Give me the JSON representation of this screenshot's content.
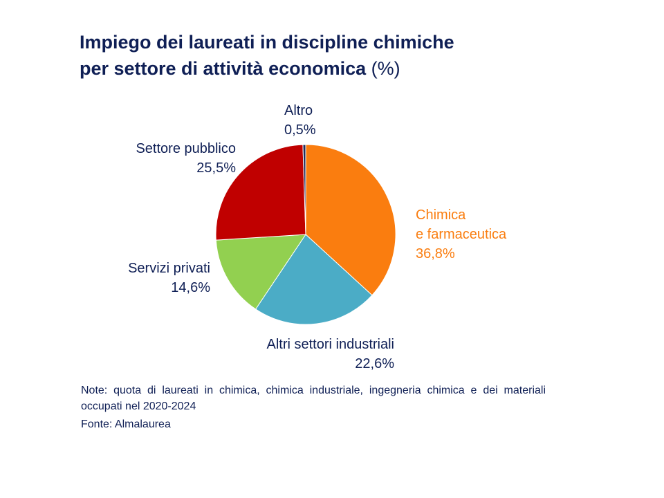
{
  "title": {
    "line1": "Impiego dei laureati in discipline chimiche",
    "line2": "per settore di attività economica",
    "unit": "(%)"
  },
  "chart_data": {
    "type": "pie",
    "start": "12 o'clock, clockwise",
    "slices": [
      {
        "name": "Chimica e farmaceutica",
        "label_lines": [
          "Chimica",
          "e farmaceutica"
        ],
        "value": 36.8,
        "value_label": "36,8%",
        "color": "#fa7d0f",
        "label_color": "#fa7d0f"
      },
      {
        "name": "Altri settori industriali",
        "label_lines": [
          "Altri settori industriali"
        ],
        "value": 22.6,
        "value_label": "22,6%",
        "color": "#4bacc6",
        "label_color": "#0f1f55"
      },
      {
        "name": "Servizi privati",
        "label_lines": [
          "Servizi privati"
        ],
        "value": 14.6,
        "value_label": "14,6%",
        "color": "#92d050",
        "label_color": "#0f1f55"
      },
      {
        "name": "Settore pubblico",
        "label_lines": [
          "Settore pubblico"
        ],
        "value": 25.5,
        "value_label": "25,5%",
        "color": "#c00000",
        "label_color": "#0f1f55"
      },
      {
        "name": "Altro",
        "label_lines": [
          "Altro"
        ],
        "value": 0.5,
        "value_label": "0,5%",
        "color": "#1f2d5c",
        "label_color": "#0f1f55"
      }
    ]
  },
  "note": "Note: quota di laureati in chimica, chimica industriale, ingegneria chimica e dei materiali occupati nel 2020-2024",
  "source": "Fonte: Almalaurea"
}
